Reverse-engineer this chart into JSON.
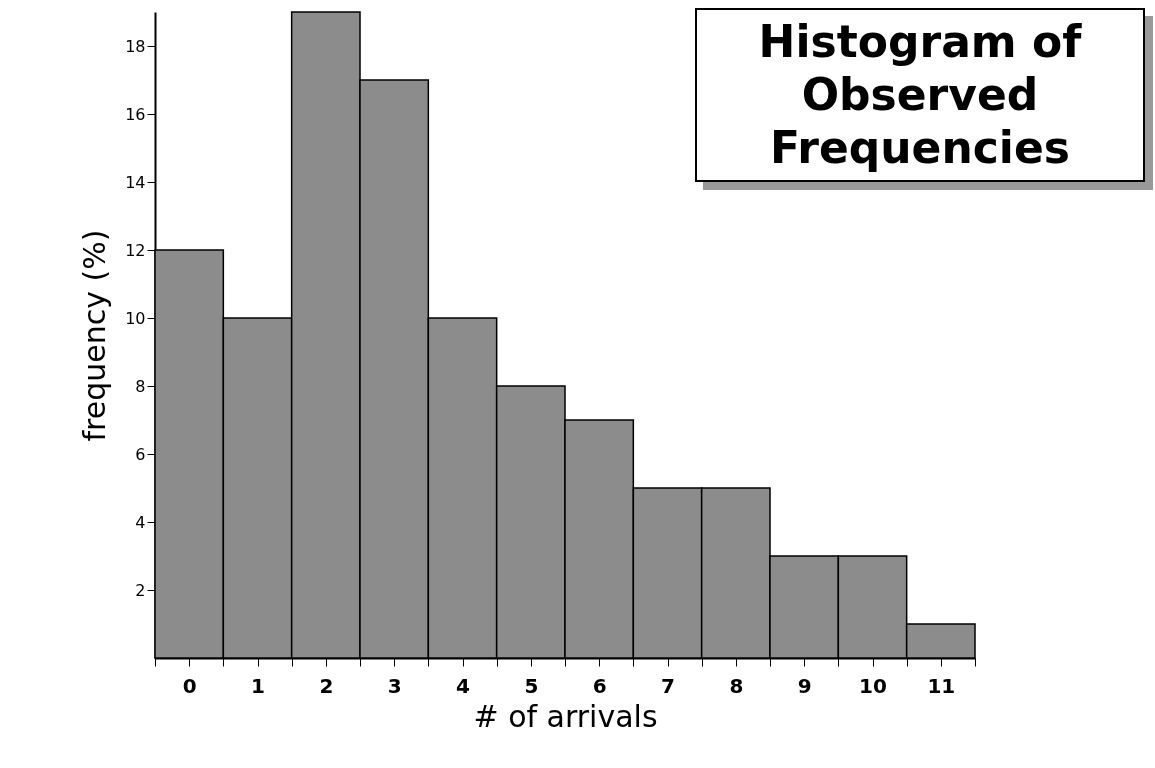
{
  "chart_data": {
    "type": "bar",
    "title": "Histogram of Observed Frequencies",
    "xlabel": "# of arrivals",
    "ylabel": "frequency (%)",
    "categories": [
      "0",
      "1",
      "2",
      "3",
      "4",
      "5",
      "6",
      "7",
      "8",
      "9",
      "10",
      "11"
    ],
    "values": [
      12,
      10,
      19,
      17,
      10,
      8,
      7,
      5,
      5,
      3,
      3,
      1
    ],
    "color": "#8c8c8c",
    "ylim": [
      0,
      19
    ],
    "yticks": [
      2,
      4,
      6,
      8,
      10,
      12,
      14,
      16,
      18
    ],
    "grid": false
  }
}
